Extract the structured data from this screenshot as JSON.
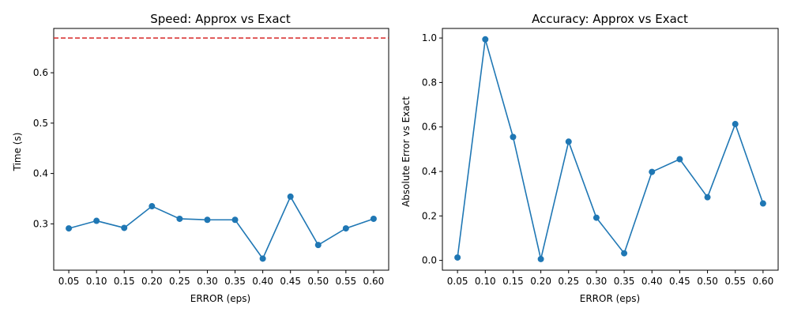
{
  "colors": {
    "series": "#1f77b4",
    "reference": "#d62728",
    "axis": "#000000",
    "background": "#ffffff"
  },
  "chart_data": [
    {
      "type": "line",
      "title": "Speed: Approx vs Exact",
      "xlabel": "ERROR (eps)",
      "ylabel": "Time (s)",
      "x_tick_labels": [
        "0.05",
        "0.10",
        "0.15",
        "0.20",
        "0.25",
        "0.30",
        "0.35",
        "0.40",
        "0.45",
        "0.50",
        "0.55",
        "0.60"
      ],
      "y_tick_labels": [
        "0.3",
        "0.4",
        "0.5",
        "0.6"
      ],
      "y_ticks": [
        0.3,
        0.4,
        0.5,
        0.6
      ],
      "ylim": [
        0.208,
        0.688
      ],
      "grid": false,
      "series": [
        {
          "x": [
            0.05,
            0.1,
            0.15,
            0.2,
            0.25,
            0.3,
            0.35,
            0.4,
            0.45,
            0.5,
            0.55,
            0.6
          ],
          "values": [
            0.291,
            0.306,
            0.292,
            0.335,
            0.31,
            0.308,
            0.308,
            0.231,
            0.354,
            0.258,
            0.291,
            0.31
          ],
          "marker": "circle"
        }
      ],
      "reference_line": {
        "y": 0.669,
        "style": "dashed"
      }
    },
    {
      "type": "line",
      "title": "Accuracy: Approx vs Exact",
      "xlabel": "ERROR (eps)",
      "ylabel": "Absolute Error vs Exact",
      "x_tick_labels": [
        "0.05",
        "0.10",
        "0.15",
        "0.20",
        "0.25",
        "0.30",
        "0.35",
        "0.40",
        "0.45",
        "0.50",
        "0.55",
        "0.60"
      ],
      "y_tick_labels": [
        "0.0",
        "0.2",
        "0.4",
        "0.6",
        "0.8",
        "1.0"
      ],
      "y_ticks": [
        0.0,
        0.2,
        0.4,
        0.6,
        0.8,
        1.0
      ],
      "ylim": [
        -0.044,
        1.043
      ],
      "grid": false,
      "series": [
        {
          "x": [
            0.05,
            0.1,
            0.15,
            0.2,
            0.25,
            0.3,
            0.35,
            0.4,
            0.45,
            0.5,
            0.55,
            0.6
          ],
          "values": [
            0.013,
            0.994,
            0.555,
            0.006,
            0.534,
            0.192,
            0.032,
            0.398,
            0.455,
            0.284,
            0.613,
            0.256
          ],
          "marker": "circle"
        }
      ]
    }
  ]
}
